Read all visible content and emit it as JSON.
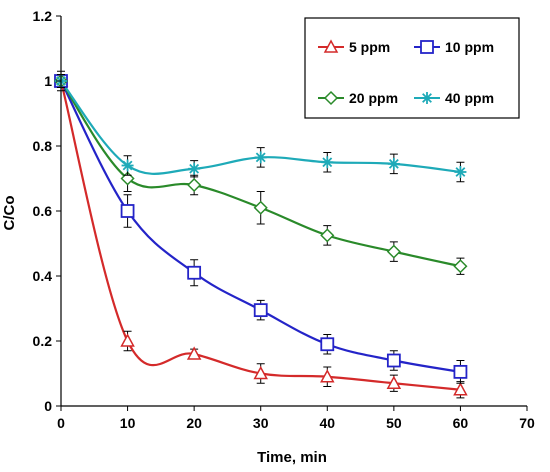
{
  "chart_data": {
    "type": "line",
    "xlabel": "Time, min",
    "ylabel": "C/Co",
    "xlim": [
      0,
      70
    ],
    "ylim": [
      0,
      1.2
    ],
    "xticks": [
      "0",
      "10",
      "20",
      "30",
      "40",
      "50",
      "60",
      "70"
    ],
    "yticks": [
      "0",
      "0.2",
      "0.4",
      "0.6",
      "0.8",
      "1",
      "1.2"
    ],
    "grid": false,
    "legend_position": "top-right",
    "x": [
      0,
      10,
      20,
      30,
      40,
      50,
      60
    ],
    "series": [
      {
        "name": "5 ppm",
        "marker": "triangle",
        "color": "#d42a2a",
        "values": [
          1.0,
          0.2,
          0.16,
          0.1,
          0.09,
          0.07,
          0.05
        ],
        "errors": [
          0.02,
          0.03,
          0.015,
          0.03,
          0.03,
          0.025,
          0.025
        ]
      },
      {
        "name": "10 ppm",
        "marker": "square",
        "color": "#2424c8",
        "values": [
          1.0,
          0.6,
          0.41,
          0.295,
          0.19,
          0.14,
          0.105
        ],
        "errors": [
          0.02,
          0.05,
          0.04,
          0.03,
          0.03,
          0.03,
          0.035
        ]
      },
      {
        "name": "20 ppm",
        "marker": "diamond",
        "color": "#2a8a2a",
        "values": [
          1.0,
          0.7,
          0.68,
          0.61,
          0.525,
          0.475,
          0.43
        ],
        "errors": [
          0.02,
          0.04,
          0.03,
          0.05,
          0.03,
          0.03,
          0.025
        ]
      },
      {
        "name": "40 ppm",
        "marker": "asterisk",
        "color": "#1eaab8",
        "values": [
          1.0,
          0.74,
          0.73,
          0.765,
          0.75,
          0.745,
          0.72
        ],
        "errors": [
          0.03,
          0.03,
          0.025,
          0.03,
          0.03,
          0.03,
          0.03
        ]
      }
    ]
  }
}
